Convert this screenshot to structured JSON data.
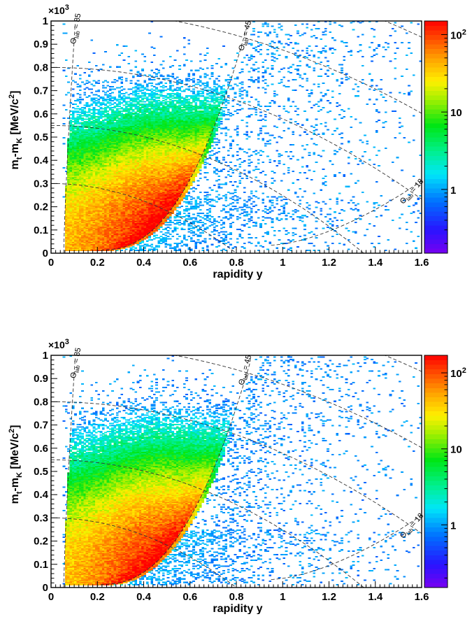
{
  "chart_data": [
    {
      "type": "heatmap",
      "xlabel": "rapidity y",
      "ylabel_main": "m",
      "ylabel_sub1": "t",
      "ylabel_mid": "-m",
      "ylabel_sub2": "K",
      "ylabel_unit": "[MeV/c",
      "ylabel_unit_sup": "2",
      "ylabel_close": "]",
      "y_multiplier_base": "×10",
      "y_multiplier_exp": "3",
      "xlim": [
        0,
        1.6
      ],
      "ylim": [
        0,
        1
      ],
      "x_ticks": [
        "0",
        "0.2",
        "0.4",
        "0.6",
        "0.8",
        "1",
        "1.2",
        "1.4",
        "1.6"
      ],
      "y_ticks": [
        "0",
        "0.1",
        "0.2",
        "0.3",
        "0.4",
        "0.5",
        "0.6",
        "0.7",
        "0.8",
        "0.9",
        "1"
      ],
      "z_scale": "log",
      "z_range": [
        0.15,
        150
      ],
      "z_ticks": [
        {
          "value": 1,
          "label": "1"
        },
        {
          "value": 10,
          "label": "10"
        },
        {
          "value": 100,
          "label": "10",
          "sup": "2"
        }
      ],
      "theta_labels": [
        {
          "prefix": "Θ",
          "sub": "lab",
          "text": " = 85"
        },
        {
          "prefix": "Θ",
          "sub": "lab",
          "text": " = 45"
        },
        {
          "prefix": "Θ",
          "sub": "lab",
          "text": " = 18"
        }
      ],
      "theta_angles_deg": [
        85,
        45,
        18
      ],
      "distribution": {
        "boundary_y_rel": 0.84,
        "peak_y": 0.52,
        "peak_mt": 0.1,
        "sigma_mt": 0.28
      }
    },
    {
      "type": "heatmap",
      "xlabel": "rapidity y",
      "ylabel_main": "m",
      "ylabel_sub1": "t",
      "ylabel_mid": "-m",
      "ylabel_sub2": "K",
      "ylabel_unit": "[MeV/c",
      "ylabel_unit_sup": "2",
      "ylabel_close": "]",
      "y_multiplier_base": "×10",
      "y_multiplier_exp": "3",
      "xlim": [
        0,
        1.6
      ],
      "ylim": [
        0,
        1
      ],
      "x_ticks": [
        "0",
        "0.2",
        "0.4",
        "0.6",
        "0.8",
        "1",
        "1.2",
        "1.4",
        "1.6"
      ],
      "y_ticks": [
        "0",
        "0.1",
        "0.2",
        "0.3",
        "0.4",
        "0.5",
        "0.6",
        "0.7",
        "0.8",
        "0.9",
        "1"
      ],
      "z_scale": "log",
      "z_range": [
        0.15,
        170
      ],
      "z_ticks": [
        {
          "value": 1,
          "label": "1"
        },
        {
          "value": 10,
          "label": "10"
        },
        {
          "value": 100,
          "label": "10",
          "sup": "2"
        }
      ],
      "theta_labels": [
        {
          "prefix": "Θ",
          "sub": "lab",
          "text": " = 85"
        },
        {
          "prefix": "Θ",
          "sub": "lab",
          "text": " = 45"
        },
        {
          "prefix": "Θ",
          "sub": "lab",
          "text": " = 18"
        }
      ],
      "theta_angles_deg": [
        85,
        45,
        18
      ],
      "distribution": {
        "boundary_y_rel": 0.86,
        "peak_y": 0.5,
        "peak_mt": 0.1,
        "sigma_mt": 0.3
      }
    }
  ]
}
